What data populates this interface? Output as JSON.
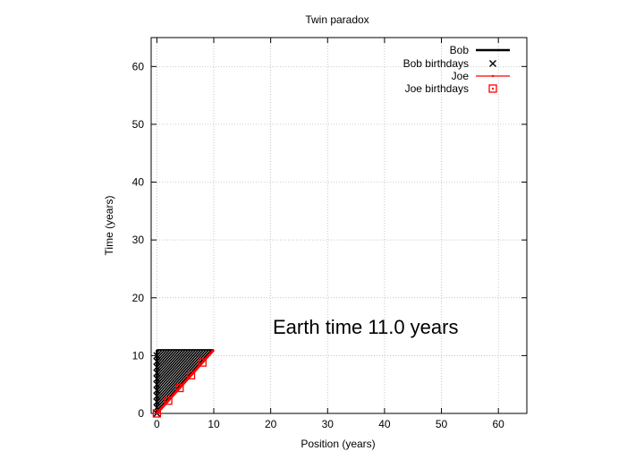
{
  "chart_data": {
    "type": "line",
    "title": "Twin paradox",
    "xlabel": "Position (years)",
    "ylabel": "Time (years)",
    "xlim": [
      -1,
      65
    ],
    "ylim": [
      0,
      65
    ],
    "xticks": [
      0,
      10,
      20,
      30,
      40,
      50,
      60
    ],
    "yticks": [
      0,
      10,
      20,
      30,
      40,
      50,
      60
    ],
    "grid": true,
    "legend_position": "top-right",
    "annotation": "Earth time 11.0 years",
    "series": [
      {
        "name": "Bob",
        "kind": "line",
        "color": "#000000",
        "note": "light-like and stationary worldline segments (dense hatching) for t in [0, 11]",
        "x": [
          0,
          0
        ],
        "y": [
          0,
          11
        ]
      },
      {
        "name": "Bob birthdays",
        "kind": "points",
        "marker": "x",
        "color": "#000000",
        "x": [
          0,
          0,
          0,
          0,
          0,
          0,
          0,
          0,
          0,
          0,
          0
        ],
        "y": [
          0,
          1,
          2,
          3,
          4,
          5,
          6,
          7,
          8,
          9,
          10
        ]
      },
      {
        "name": "Joe",
        "kind": "line",
        "color": "#ff0000",
        "x": [
          0,
          10
        ],
        "y": [
          0,
          11
        ]
      },
      {
        "name": "Joe birthdays",
        "kind": "points",
        "marker": "square",
        "color": "#ff0000",
        "x": [
          0,
          2,
          4,
          6,
          8
        ],
        "y": [
          0,
          2.2,
          4.4,
          6.6,
          8.8
        ]
      }
    ]
  }
}
